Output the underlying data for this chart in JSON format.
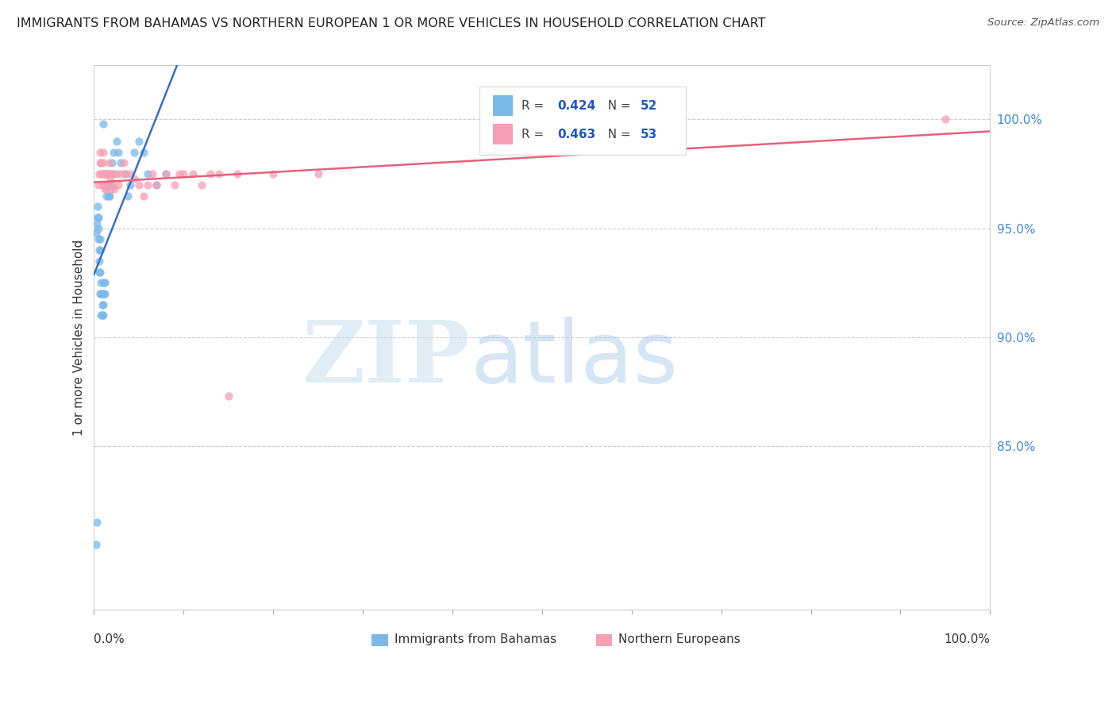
{
  "title": "IMMIGRANTS FROM BAHAMAS VS NORTHERN EUROPEAN 1 OR MORE VEHICLES IN HOUSEHOLD CORRELATION CHART",
  "source": "Source: ZipAtlas.com",
  "ylabel": "1 or more Vehicles in Household",
  "ytick_labels": [
    "100.0%",
    "95.0%",
    "90.0%",
    "85.0%"
  ],
  "ytick_values": [
    1.0,
    0.95,
    0.9,
    0.85
  ],
  "xlim": [
    0.0,
    1.0
  ],
  "ylim": [
    0.775,
    1.025
  ],
  "legend_label1": "Immigrants from Bahamas",
  "legend_label2": "Northern Europeans",
  "r1": 0.424,
  "n1": 52,
  "r2": 0.463,
  "n2": 53,
  "color1": "#7ab8e8",
  "color2": "#f4a0b5",
  "line_color1": "#3a6fbb",
  "line_color2": "#e8607a",
  "bahamas_x": [
    0.002,
    0.003,
    0.004,
    0.004,
    0.005,
    0.005,
    0.005,
    0.006,
    0.006,
    0.006,
    0.007,
    0.007,
    0.007,
    0.007,
    0.008,
    0.008,
    0.008,
    0.009,
    0.009,
    0.009,
    0.01,
    0.01,
    0.01,
    0.011,
    0.011,
    0.012,
    0.012,
    0.013,
    0.013,
    0.014,
    0.015,
    0.015,
    0.016,
    0.017,
    0.018,
    0.019,
    0.02,
    0.022,
    0.025,
    0.027,
    0.03,
    0.035,
    0.038,
    0.04,
    0.045,
    0.05,
    0.055,
    0.06,
    0.07,
    0.08,
    0.002,
    0.003
  ],
  "bahamas_y": [
    0.805,
    0.815,
    0.955,
    0.96,
    0.945,
    0.95,
    0.955,
    0.93,
    0.935,
    0.94,
    0.92,
    0.93,
    0.94,
    0.945,
    0.91,
    0.92,
    0.925,
    0.91,
    0.915,
    0.92,
    0.91,
    0.915,
    0.998,
    0.92,
    0.925,
    0.92,
    0.925,
    0.97,
    0.975,
    0.965,
    0.97,
    0.975,
    0.965,
    0.965,
    0.97,
    0.975,
    0.98,
    0.985,
    0.99,
    0.985,
    0.98,
    0.975,
    0.965,
    0.97,
    0.985,
    0.99,
    0.985,
    0.975,
    0.97,
    0.975,
    0.948,
    0.952
  ],
  "northern_x": [
    0.005,
    0.006,
    0.007,
    0.007,
    0.008,
    0.008,
    0.009,
    0.009,
    0.01,
    0.01,
    0.011,
    0.011,
    0.012,
    0.012,
    0.013,
    0.013,
    0.014,
    0.015,
    0.015,
    0.016,
    0.017,
    0.018,
    0.019,
    0.02,
    0.021,
    0.022,
    0.023,
    0.025,
    0.027,
    0.03,
    0.033,
    0.035,
    0.04,
    0.045,
    0.05,
    0.055,
    0.06,
    0.065,
    0.07,
    0.08,
    0.09,
    0.095,
    0.1,
    0.11,
    0.12,
    0.13,
    0.14,
    0.15,
    0.16,
    0.2,
    0.25,
    0.6,
    0.95
  ],
  "northern_y": [
    0.97,
    0.975,
    0.98,
    0.985,
    0.975,
    0.98,
    0.97,
    0.975,
    0.98,
    0.985,
    0.975,
    0.97,
    0.968,
    0.975,
    0.97,
    0.975,
    0.968,
    0.975,
    0.97,
    0.975,
    0.98,
    0.972,
    0.968,
    0.975,
    0.97,
    0.975,
    0.968,
    0.975,
    0.97,
    0.975,
    0.98,
    0.975,
    0.975,
    0.973,
    0.97,
    0.965,
    0.97,
    0.975,
    0.97,
    0.975,
    0.97,
    0.975,
    0.975,
    0.975,
    0.97,
    0.975,
    0.975,
    0.873,
    0.975,
    0.975,
    0.975,
    1.0,
    1.0
  ]
}
